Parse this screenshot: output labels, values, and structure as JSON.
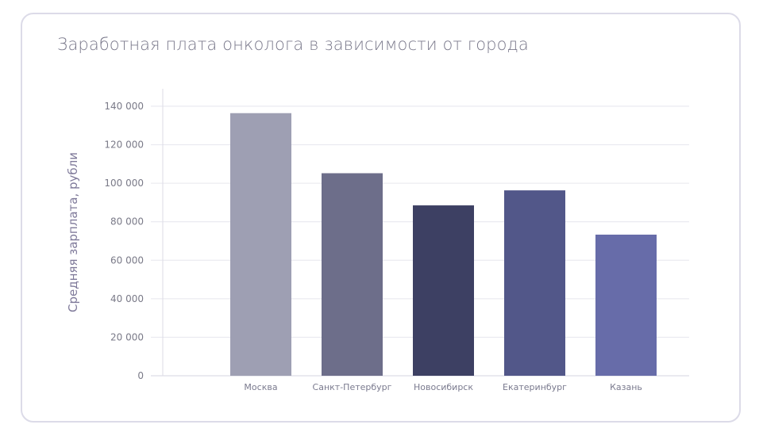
{
  "chart_data": {
    "type": "bar",
    "title": "Заработная плата онколога в зависимости от города",
    "xlabel": "",
    "ylabel": "Средняя зарплата, рубли",
    "categories": [
      "Москва",
      "Санкт-Петербург",
      "Новосибирск",
      "Екатеринбург",
      "Казань"
    ],
    "values": [
      136400,
      105200,
      88500,
      96300,
      73300
    ],
    "colors": [
      "#9e9fb3",
      "#6d6e8a",
      "#3d4063",
      "#525789",
      "#676ca9"
    ],
    "ylim": [
      0,
      140000
    ],
    "yticks": [
      0,
      20000,
      40000,
      60000,
      80000,
      100000,
      120000,
      140000
    ],
    "ytick_labels": [
      "0",
      "20 000",
      "40 000",
      "60 000",
      "80 000",
      "100 000",
      "120 000",
      "140 000"
    ],
    "grid": true
  }
}
